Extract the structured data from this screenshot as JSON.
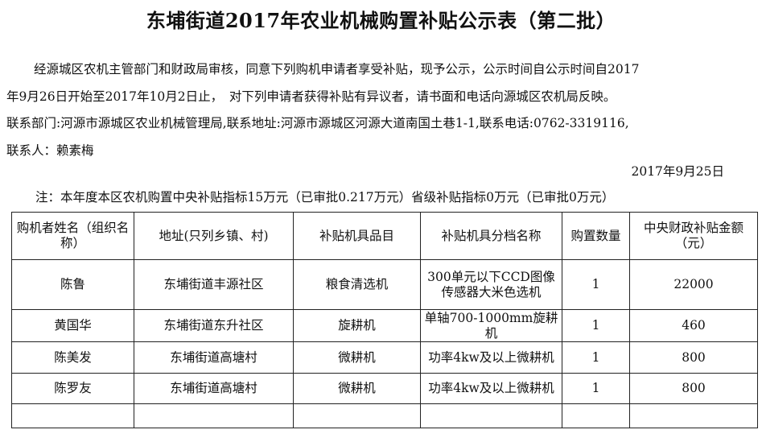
{
  "title": "东埔街道2017年农业机械购置补贴公示表（第二批）",
  "paragraph": {
    "line1": "经源城区农机主管部门和财政局审核，同意下列购机申请者享受补贴，现予公示，公示时间自公示时间自2017",
    "line2": "年9月26日开始至2017年10月2日止，　对下列申请者获得补贴有异议者，请书面和电话向源城区农机局反映。",
    "line3": "联系部门:河源市源城区农业机械管理局,联系地址:河源市源城区河源大道南国土巷1-1,联系电话:0762-3319116,",
    "line4": "联系人：赖素梅"
  },
  "date": "2017年9月25日",
  "note": "注：本年度本区农机购置中央补贴指标15万元（已审批0.217万元）省级补贴指标0万元（已审批0万元）",
  "table": {
    "headers": [
      "购机者姓名（组织名称）",
      "地址(只列乡镇、村)",
      "补贴机具品目",
      "补贴机具分档名称",
      "购置数量",
      "中央财政补贴金额（元）"
    ],
    "rows": [
      [
        "陈鲁",
        "东埔街道丰源社区",
        "粮食清选机",
        "300单元以下CCD图像传感器大米色选机",
        "1",
        "22000"
      ],
      [
        "黄国华",
        "东埔街道东升社区",
        "旋耕机",
        "单轴700-1000mm旋耕机",
        "1",
        "460"
      ],
      [
        "陈美发",
        "东埔街道高塘村",
        "微耕机",
        "功率4kw及以上微耕机",
        "1",
        "800"
      ],
      [
        "陈罗友",
        "东埔街道高塘村",
        "微耕机",
        "功率4kw及以上微耕机",
        "1",
        "800"
      ],
      [
        "",
        "",
        "",
        "",
        "",
        ""
      ]
    ]
  }
}
